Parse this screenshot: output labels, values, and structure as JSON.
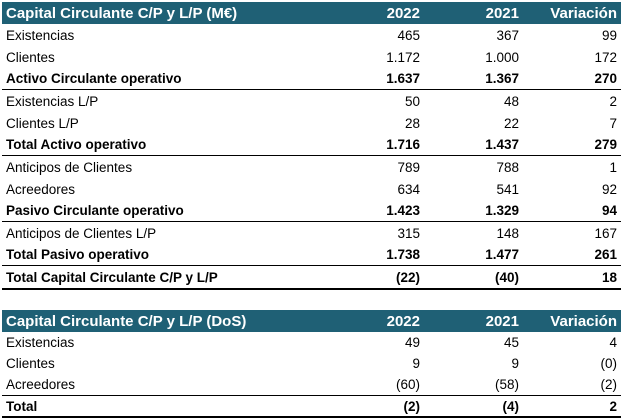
{
  "table1": {
    "title": "Capital Circulante C/P y L/P (M€)",
    "col_2022": "2022",
    "col_2021": "2021",
    "col_var": "Variación",
    "rows": [
      {
        "label": "Existencias",
        "v2022": "465",
        "v2021": "367",
        "var": "99"
      },
      {
        "label": "Clientes",
        "v2022": "1.172",
        "v2021": "1.000",
        "var": "172"
      },
      {
        "label": "Activo Circulante operativo",
        "v2022": "1.637",
        "v2021": "1.367",
        "var": "270"
      },
      {
        "label": "Existencias L/P",
        "v2022": "50",
        "v2021": "48",
        "var": "2"
      },
      {
        "label": "Clientes L/P",
        "v2022": "28",
        "v2021": "22",
        "var": "7"
      },
      {
        "label": "Total Activo operativo",
        "v2022": "1.716",
        "v2021": "1.437",
        "var": "279"
      },
      {
        "label": "Anticipos de Clientes",
        "v2022": "789",
        "v2021": "788",
        "var": "1"
      },
      {
        "label": "Acreedores",
        "v2022": "634",
        "v2021": "541",
        "var": "92"
      },
      {
        "label": "Pasivo Circulante operativo",
        "v2022": "1.423",
        "v2021": "1.329",
        "var": "94"
      },
      {
        "label": "Anticipos de Clientes L/P",
        "v2022": "315",
        "v2021": "148",
        "var": "167"
      },
      {
        "label": "Total Pasivo operativo",
        "v2022": "1.738",
        "v2021": "1.477",
        "var": "261"
      },
      {
        "label": "Total Capital Circulante C/P y L/P",
        "v2022": "(22)",
        "v2021": "(40)",
        "var": "18"
      }
    ]
  },
  "table2": {
    "title": "Capital Circulante C/P y L/P (DoS)",
    "col_2022": "2022",
    "col_2021": "2021",
    "col_var": "Variación",
    "rows": [
      {
        "label": "Existencias",
        "v2022": "49",
        "v2021": "45",
        "var": "4"
      },
      {
        "label": "Clientes",
        "v2022": "9",
        "v2021": "9",
        "var": "(0)"
      },
      {
        "label": "Acreedores",
        "v2022": "(60)",
        "v2021": "(58)",
        "var": "(2)"
      },
      {
        "label": "Total",
        "v2022": "(2)",
        "v2021": "(4)",
        "var": "2"
      }
    ]
  },
  "colors": {
    "header_bg": "#1f6075",
    "header_text": "#ffffff"
  }
}
